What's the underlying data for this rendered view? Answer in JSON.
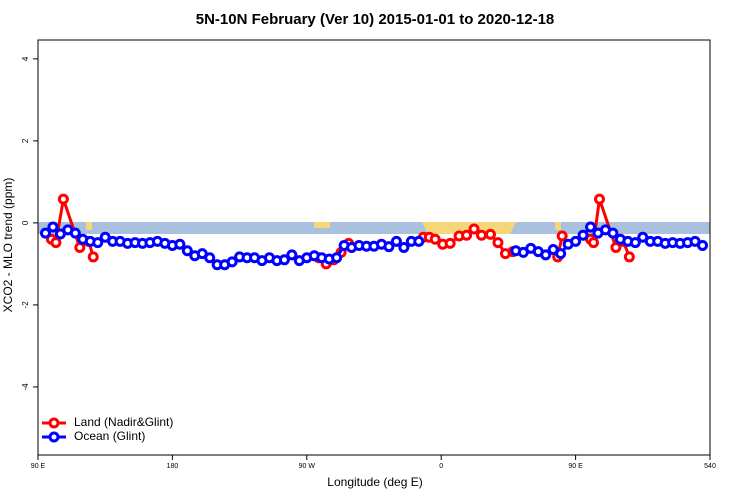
{
  "chart_data": {
    "type": "line",
    "title": "5N-10N February (Ver 10)   2015-01-01 to 2020-12-18",
    "x_label": "Longitude (deg E)",
    "y_label": "XCO2 - MLO trend (ppm)",
    "xlim": [
      90,
      540
    ],
    "xticks": [
      {
        "value": 90,
        "label": "90 E"
      },
      180,
      {
        "value": 270,
        "label": "90 W"
      },
      {
        "value": 360,
        "label": "0"
      },
      {
        "value": 450,
        "label": "90 E"
      },
      540
    ],
    "ylim": [
      -5.66,
      4.46
    ],
    "yticks": [
      -4,
      -2,
      0,
      2,
      4
    ],
    "legend": "bottom-left",
    "series": [
      {
        "name": "Land (Nadir&Glint)",
        "color": "#ff0000",
        "x": [
          99,
          102,
          107,
          118,
          124,
          127,
          200,
          278,
          283,
          288,
          293,
          298,
          320,
          348,
          352,
          356,
          361,
          366,
          372,
          377,
          382,
          387,
          393,
          398,
          403,
          408,
          420,
          438,
          441,
          455,
          460,
          462,
          466,
          477,
          482,
          486
        ],
        "values": [
          -0.4,
          -0.48,
          0.58,
          -0.6,
          -0.45,
          -0.83,
          null,
          -0.85,
          -1.0,
          -0.9,
          -0.72,
          -0.5,
          null,
          -0.35,
          -0.35,
          -0.4,
          -0.52,
          -0.5,
          -0.32,
          -0.3,
          -0.15,
          -0.3,
          -0.28,
          -0.48,
          -0.75,
          -0.7,
          null,
          -0.83,
          -0.32,
          null,
          -0.4,
          -0.48,
          0.58,
          -0.6,
          -0.45,
          -0.83
        ]
      },
      {
        "name": "Ocean (Glint)",
        "color": "#0000ff",
        "x": [
          95,
          100,
          105,
          110,
          115,
          120,
          125,
          130,
          135,
          140,
          145,
          150,
          155,
          160,
          165,
          170,
          175,
          180,
          185,
          190,
          195,
          200,
          205,
          210,
          215,
          220,
          225,
          230,
          235,
          240,
          245,
          250,
          255,
          260,
          265,
          270,
          275,
          280,
          285,
          290,
          295,
          300,
          305,
          310,
          315,
          320,
          325,
          330,
          335,
          340,
          345,
          380,
          410,
          415,
          420,
          425,
          430,
          435,
          440,
          445,
          450,
          455,
          460,
          465,
          470,
          475,
          480,
          485,
          490,
          495,
          500,
          505,
          510,
          515,
          520,
          525,
          530,
          535
        ],
        "values": [
          -0.25,
          -0.1,
          -0.27,
          -0.17,
          -0.25,
          -0.4,
          -0.45,
          -0.48,
          -0.35,
          -0.45,
          -0.45,
          -0.5,
          -0.48,
          -0.5,
          -0.48,
          -0.45,
          -0.5,
          -0.55,
          -0.52,
          -0.68,
          -0.8,
          -0.75,
          -0.85,
          -1.02,
          -1.02,
          -0.95,
          -0.83,
          -0.85,
          -0.85,
          -0.92,
          -0.85,
          -0.92,
          -0.9,
          -0.78,
          -0.92,
          -0.85,
          -0.8,
          -0.85,
          -0.88,
          -0.85,
          -0.55,
          -0.6,
          -0.55,
          -0.57,
          -0.57,
          -0.52,
          -0.58,
          -0.45,
          -0.6,
          -0.45,
          -0.45,
          null,
          -0.68,
          -0.72,
          -0.62,
          -0.7,
          -0.78,
          -0.65,
          -0.75,
          -0.52,
          -0.45,
          -0.3,
          -0.1,
          -0.25,
          -0.17,
          -0.25,
          -0.4,
          -0.45,
          -0.48,
          -0.35,
          -0.45,
          -0.45,
          -0.5,
          -0.48,
          -0.5,
          -0.48,
          -0.45,
          -0.55
        ]
      }
    ]
  }
}
